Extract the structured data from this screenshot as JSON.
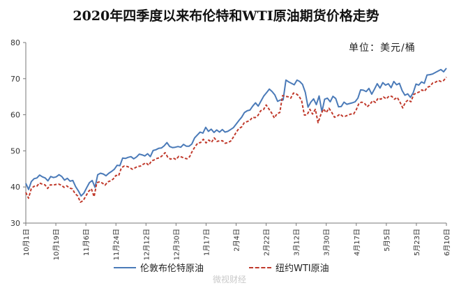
{
  "chart_data": {
    "type": "line",
    "title": "2020年四季度以来布伦特和WTI原油期货价格走势",
    "unit_label": "单位：美元/桶",
    "ylim": [
      30,
      80
    ],
    "y_ticks": [
      "30",
      "40",
      "50",
      "60",
      "70",
      "80"
    ],
    "x_ticks": [
      "10月1日",
      "10月19日",
      "11月6日",
      "11月24日",
      "12月12日",
      "12月30日",
      "1月17日",
      "2月4日",
      "2月22日",
      "3月12日",
      "3月30日",
      "4月17日",
      "5月5日",
      "5月23日",
      "6月10日"
    ],
    "grid": false,
    "legend_position": "bottom",
    "colors": {
      "brent": "#4a7ab8",
      "wti": "#c0392b"
    },
    "series": [
      {
        "name": "伦敦布伦特原油",
        "values": [
          41.0,
          39.3,
          41.5,
          42.3,
          42.5,
          43.3,
          42.8,
          42.5,
          41.7,
          42.9,
          42.6,
          42.8,
          43.4,
          42.9,
          41.9,
          42.4,
          41.6,
          41.8,
          40.1,
          38.9,
          37.5,
          38.3,
          39.8,
          41.2,
          41.8,
          39.9,
          43.4,
          43.8,
          43.6,
          43.1,
          43.8,
          44.3,
          44.9,
          46.0,
          45.9,
          48.0,
          47.9,
          48.2,
          48.4,
          47.8,
          48.3,
          49.1,
          48.9,
          48.6,
          49.2,
          48.4,
          50.1,
          50.3,
          50.7,
          50.8,
          51.4,
          52.3,
          51.2,
          50.9,
          51.0,
          51.2,
          51.0,
          51.8,
          51.3,
          51.3,
          51.9,
          53.6,
          54.4,
          55.2,
          54.9,
          56.5,
          55.4,
          56.0,
          55.1,
          55.8,
          55.2,
          55.9,
          55.2,
          55.4,
          55.9,
          56.4,
          57.4,
          58.4,
          59.3,
          60.6,
          61.1,
          61.3,
          62.4,
          63.3,
          62.4,
          63.8,
          65.2,
          66.1,
          67.1,
          66.4,
          65.5,
          63.7,
          64.1,
          64.1,
          69.6,
          69.1,
          68.7,
          68.3,
          69.6,
          69.2,
          68.4,
          66.2,
          62.1,
          63.5,
          64.4,
          62.8,
          65.2,
          60.8,
          64.3,
          64.6,
          63.6,
          65.1,
          64.5,
          62.2,
          62.3,
          63.5,
          62.9,
          63.1,
          63.3,
          63.6,
          64.6,
          66.9,
          66.8,
          66.4,
          67.3,
          65.7,
          67.1,
          68.6,
          67.4,
          68.9,
          68.2,
          68.6,
          67.5,
          69.2,
          68.3,
          68.7,
          66.7,
          65.4,
          65.8,
          64.8,
          66.1,
          68.5,
          68.2,
          69.1,
          68.7,
          71.0,
          71.1,
          71.3,
          71.7,
          72.1,
          72.5,
          71.9,
          72.9
        ]
      },
      {
        "name": "纽约WTI原油",
        "values": [
          38.5,
          36.9,
          39.5,
          40.2,
          40.2,
          41.1,
          40.8,
          40.6,
          39.6,
          40.6,
          40.5,
          40.7,
          40.8,
          40.5,
          39.9,
          40.3,
          39.7,
          39.5,
          38.2,
          37.5,
          35.8,
          36.2,
          37.5,
          38.8,
          39.5,
          37.3,
          41.2,
          41.4,
          41.1,
          40.5,
          41.4,
          41.7,
          42.2,
          43.2,
          43.1,
          45.3,
          45.8,
          45.7,
          45.4,
          44.9,
          45.3,
          45.7,
          45.8,
          46.3,
          46.7,
          46.0,
          47.2,
          47.5,
          47.9,
          48.1,
          48.7,
          49.5,
          48.2,
          47.7,
          48.0,
          47.6,
          48.5,
          48.3,
          48.0,
          47.8,
          48.4,
          50.0,
          51.2,
          52.2,
          52.3,
          53.2,
          52.2,
          53.0,
          52.4,
          53.6,
          52.6,
          52.8,
          52.8,
          52.1,
          52.3,
          52.7,
          53.8,
          55.1,
          56.2,
          56.6,
          57.8,
          58.1,
          58.4,
          59.3,
          59.2,
          59.8,
          61.1,
          61.4,
          62.7,
          61.6,
          60.5,
          59.1,
          60.3,
          60.6,
          65.3,
          65.1,
          65.0,
          64.6,
          66.0,
          65.8,
          65.2,
          63.8,
          59.9,
          60.0,
          61.5,
          60.2,
          61.5,
          57.8,
          60.0,
          61.6,
          60.6,
          61.8,
          60.7,
          59.3,
          59.6,
          60.2,
          59.6,
          59.6,
          59.9,
          60.2,
          60.2,
          61.4,
          63.2,
          63.5,
          63.2,
          62.2,
          62.9,
          63.9,
          63.4,
          64.6,
          64.3,
          64.9,
          64.4,
          65.2,
          65.1,
          64.3,
          64.8,
          63.5,
          61.9,
          63.5,
          64.1,
          63.6,
          65.6,
          66.0,
          66.3,
          66.9,
          66.5,
          67.6,
          67.9,
          68.8,
          69.0,
          69.5,
          69.2,
          69.5,
          70.4
        ]
      }
    ]
  },
  "watermark": "微视财经"
}
